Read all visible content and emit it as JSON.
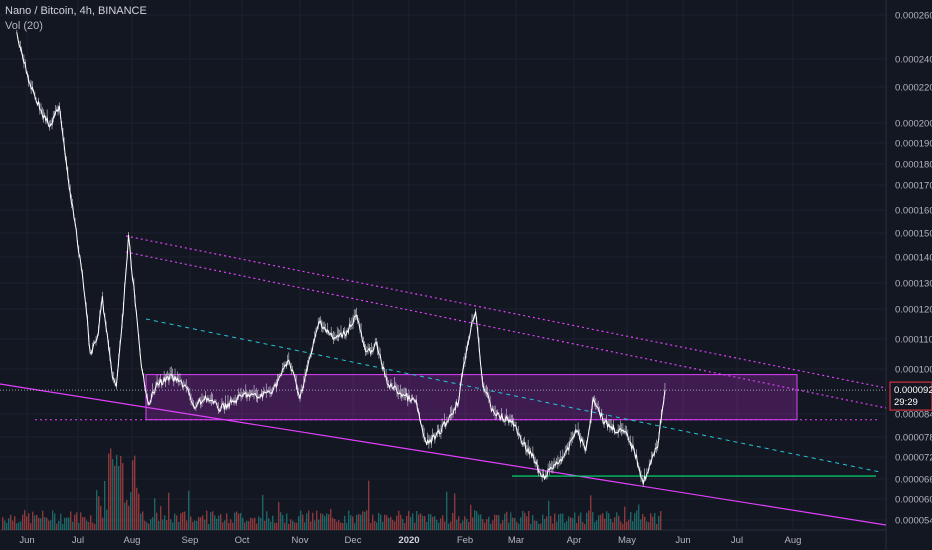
{
  "header": {
    "title": "Nano / Bitcoin, 4h, BINANCE",
    "indicator": "Vol (20)"
  },
  "colors": {
    "background": "#131722",
    "grid": "#1e2230",
    "candle_up": "#26a69a",
    "candle_down": "#ef5350",
    "wick": "#d1d4dc",
    "price_line": "#ffffff",
    "trendline": "#e040fb",
    "box_fill": "#9c27b0",
    "support": "#00e676",
    "mid_trend": "#26c6da",
    "last_price_tag": "#f23645"
  },
  "chart_data": {
    "type": "candlestick",
    "ytick_labels": [
      "0.0002600",
      "0.0002400",
      "0.0002200",
      "0.0002000",
      "0.0001900",
      "0.0001800",
      "0.0001700",
      "0.0001600",
      "0.0001500",
      "0.0001400",
      "0.0001300",
      "0.0001200",
      "0.0001100",
      "0.0001000",
      "0.0000840",
      "0.0000780",
      "0.0000720",
      "0.0000660",
      "0.0000600",
      "0.0000545"
    ],
    "ytick_values": [
      0.00026,
      0.00024,
      0.00022,
      0.0002,
      0.00019,
      0.00018,
      0.00017,
      0.00016,
      0.00015,
      0.00014,
      0.00013,
      0.00012,
      0.00011,
      0.0001,
      8.4e-05,
      7.8e-05,
      7.2e-05,
      6.6e-05,
      6e-05,
      5.45e-05
    ],
    "xtick_labels": [
      "Jun",
      "Jul",
      "Aug",
      "Sep",
      "Oct",
      "Nov",
      "Dec",
      "2020",
      "Feb",
      "Mar",
      "Apr",
      "May",
      "Jun",
      "Jul",
      "Aug"
    ],
    "xtick_values": [
      "2019-06-01",
      "2019-07-01",
      "2019-08-01",
      "2019-09-01",
      "2019-10-01",
      "2019-11-01",
      "2019-12-01",
      "2020-01-01",
      "2020-02-01",
      "2020-03-01",
      "2020-04-01",
      "2020-05-01",
      "2020-06-01",
      "2020-07-01",
      "2020-08-01"
    ],
    "last_price": "0.0000925",
    "countdown": "29:29",
    "price_path": [
      [
        "2019-05-26",
        0.000252
      ],
      [
        "2019-06-02",
        0.000225
      ],
      [
        "2019-06-10",
        0.000205
      ],
      [
        "2019-06-15",
        0.000198
      ],
      [
        "2019-06-20",
        0.00021
      ],
      [
        "2019-06-25",
        0.000175
      ],
      [
        "2019-06-30",
        0.00015
      ],
      [
        "2019-07-05",
        0.000125
      ],
      [
        "2019-07-08",
        0.000105
      ],
      [
        "2019-07-12",
        0.00011
      ],
      [
        "2019-07-15",
        0.000124
      ],
      [
        "2019-07-20",
        0.0001
      ],
      [
        "2019-07-23",
        9.3e-05
      ],
      [
        "2019-07-27",
        0.00012
      ],
      [
        "2019-07-30",
        0.000148
      ],
      [
        "2019-08-02",
        0.000128
      ],
      [
        "2019-08-06",
        0.0001
      ],
      [
        "2019-08-10",
        8.8e-05
      ],
      [
        "2019-08-15",
        9.5e-05
      ],
      [
        "2019-08-22",
        9.7e-05
      ],
      [
        "2019-08-30",
        9.4e-05
      ],
      [
        "2019-09-03",
        8.6e-05
      ],
      [
        "2019-09-10",
        9e-05
      ],
      [
        "2019-09-18",
        8.6e-05
      ],
      [
        "2019-09-25",
        8.8e-05
      ],
      [
        "2019-10-03",
        9.1e-05
      ],
      [
        "2019-10-10",
        9e-05
      ],
      [
        "2019-10-18",
        9.3e-05
      ],
      [
        "2019-10-26",
        0.000103
      ],
      [
        "2019-11-01",
        9e-05
      ],
      [
        "2019-11-06",
        0.000102
      ],
      [
        "2019-11-12",
        0.000116
      ],
      [
        "2019-11-20",
        0.00011
      ],
      [
        "2019-11-27",
        0.000112
      ],
      [
        "2019-12-03",
        0.000118
      ],
      [
        "2019-12-08",
        0.000105
      ],
      [
        "2019-12-14",
        0.000108
      ],
      [
        "2019-12-20",
        9.5e-05
      ],
      [
        "2019-12-28",
        9.1e-05
      ],
      [
        "2020-01-05",
        8.8e-05
      ],
      [
        "2020-01-10",
        7.6e-05
      ],
      [
        "2020-01-16",
        7.8e-05
      ],
      [
        "2020-01-22",
        8.2e-05
      ],
      [
        "2020-01-28",
        8.8e-05
      ],
      [
        "2020-02-03",
        0.00011
      ],
      [
        "2020-02-07",
        0.00012
      ],
      [
        "2020-02-11",
        9.5e-05
      ],
      [
        "2020-02-16",
        8.6e-05
      ],
      [
        "2020-02-21",
        8.3e-05
      ],
      [
        "2020-02-28",
        8.2e-05
      ],
      [
        "2020-03-05",
        7.6e-05
      ],
      [
        "2020-03-10",
        7.2e-05
      ],
      [
        "2020-03-15",
        6.6e-05
      ],
      [
        "2020-03-22",
        7e-05
      ],
      [
        "2020-03-28",
        7.3e-05
      ],
      [
        "2020-04-02",
        8e-05
      ],
      [
        "2020-04-08",
        7.4e-05
      ],
      [
        "2020-04-12",
        9e-05
      ],
      [
        "2020-04-18",
        8.2e-05
      ],
      [
        "2020-04-24",
        8e-05
      ],
      [
        "2020-04-30",
        7.9e-05
      ],
      [
        "2020-05-05",
        7.4e-05
      ],
      [
        "2020-05-10",
        6.5e-05
      ],
      [
        "2020-05-14",
        7e-05
      ],
      [
        "2020-05-18",
        7.6e-05
      ],
      [
        "2020-05-22",
        9.25e-05
      ]
    ]
  }
}
